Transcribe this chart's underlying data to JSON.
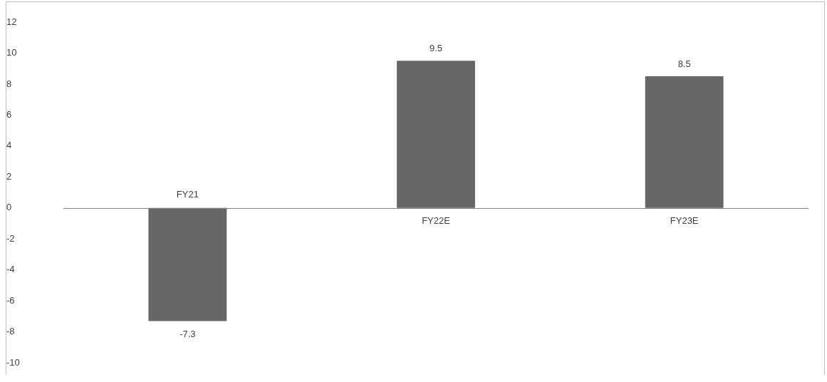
{
  "chart_data": {
    "type": "bar",
    "categories": [
      "FY21",
      "FY22E",
      "FY23E"
    ],
    "values": [
      -7.3,
      9.5,
      8.5
    ],
    "color": "#666666",
    "ylim": [
      -10,
      12
    ],
    "yticks": [
      -10,
      -8,
      -6,
      -4,
      -2,
      0,
      2,
      4,
      6,
      8,
      10,
      12
    ],
    "grid": false,
    "legend": false,
    "data_labels": true
  }
}
